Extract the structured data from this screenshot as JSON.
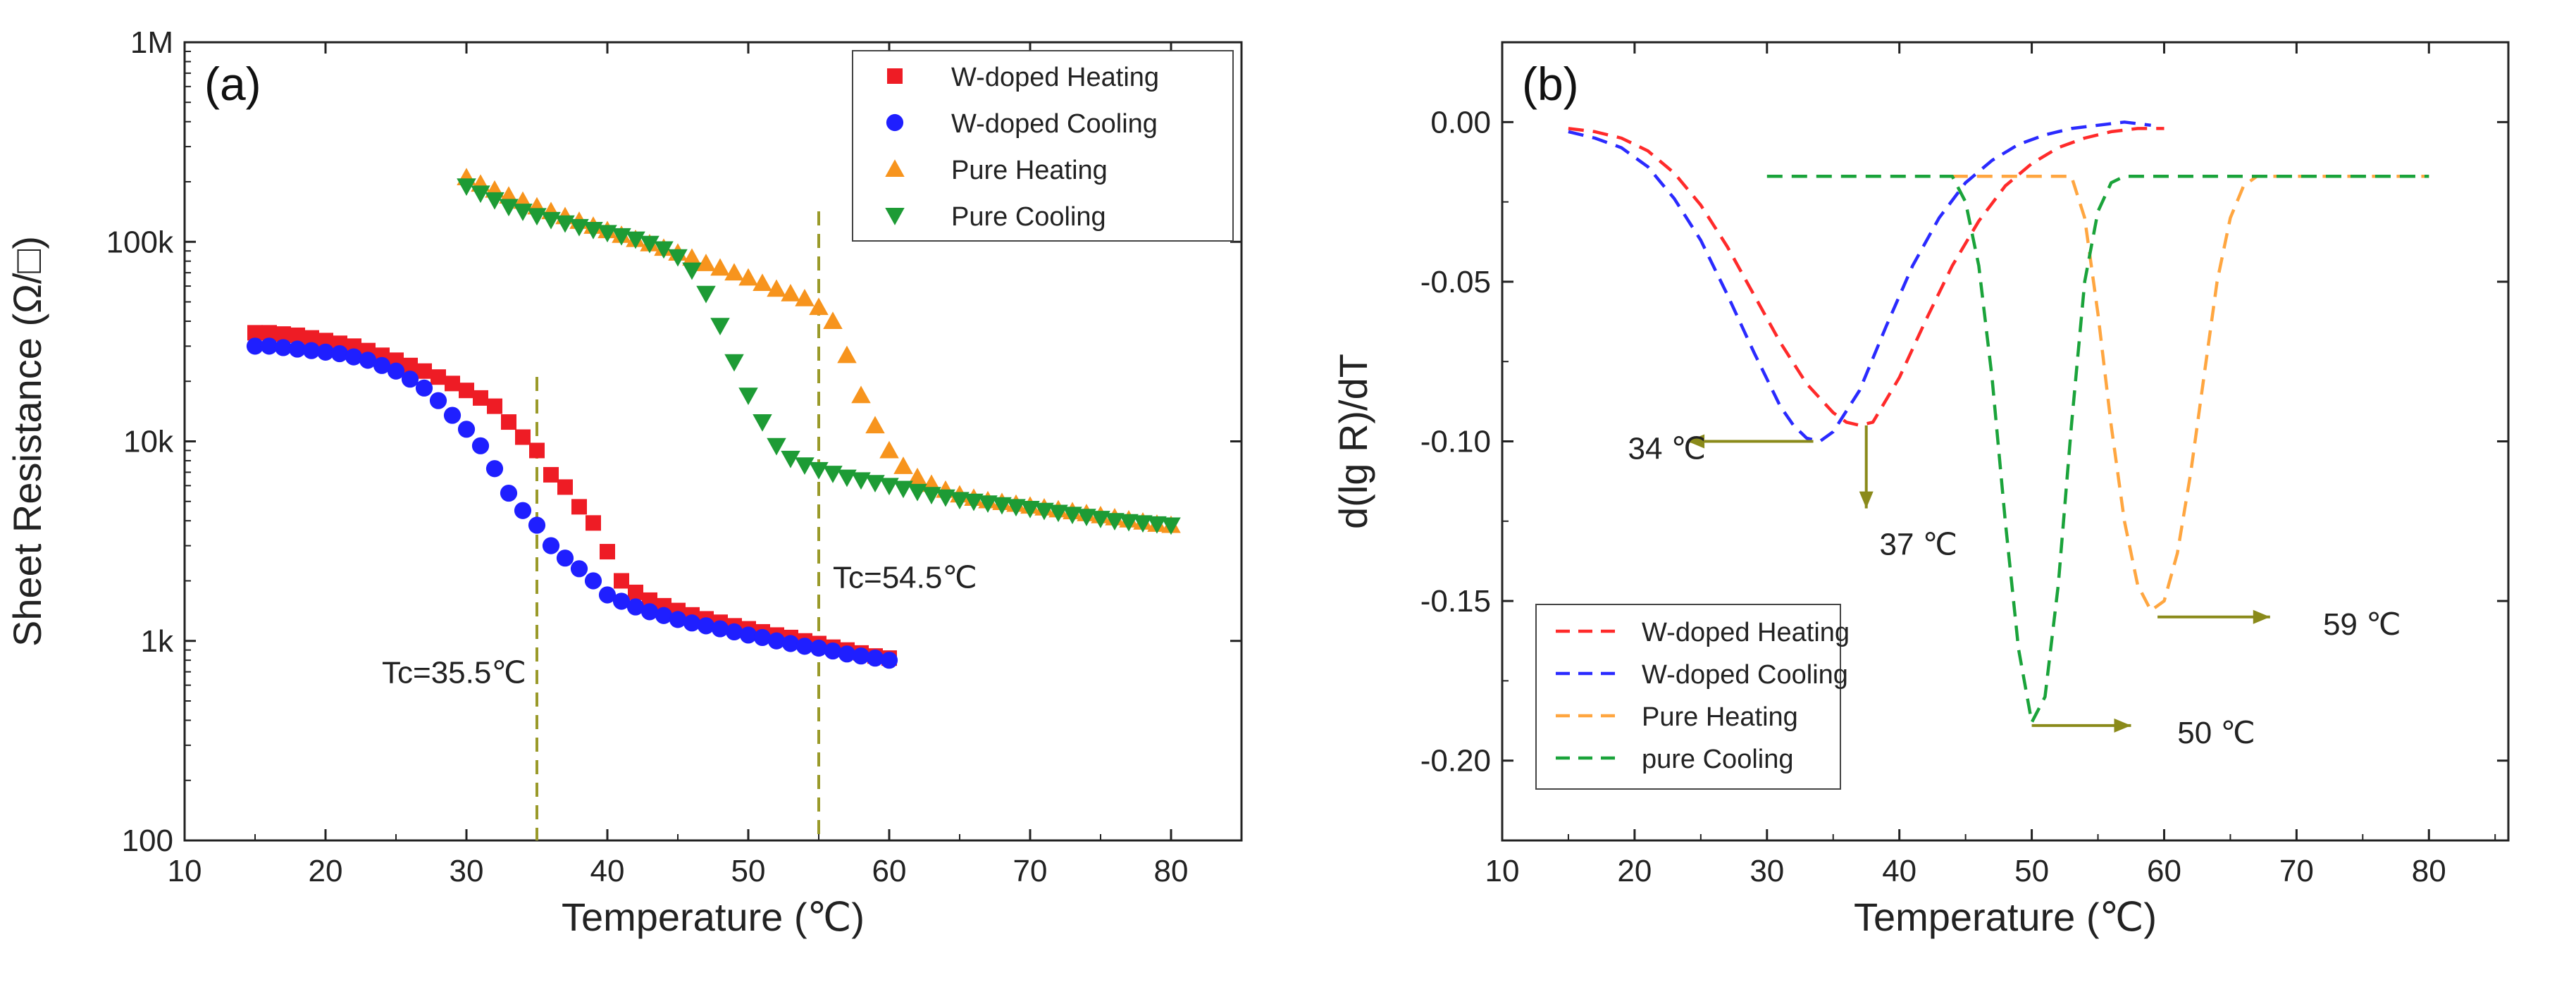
{
  "chart_data": [
    {
      "type": "scatter",
      "panel_label": "(a)",
      "xlabel": "Temperature (℃)",
      "ylabel": "Sheet Resistance (Ω/□)",
      "xlim": [
        10,
        85
      ],
      "ylim": [
        100,
        1000000
      ],
      "yscale": "log",
      "xticks": [
        10,
        20,
        30,
        40,
        50,
        60,
        70,
        80
      ],
      "yticks": [
        {
          "value": 100,
          "label": "100"
        },
        {
          "value": 1000,
          "label": "1k"
        },
        {
          "value": 10000,
          "label": "10k"
        },
        {
          "value": 100000,
          "label": "100k"
        },
        {
          "value": 1000000,
          "label": "1M"
        }
      ],
      "legend_position": "top-right",
      "series": [
        {
          "name": "W-doped Heating",
          "marker": "square",
          "color": "#ee1c25",
          "x": [
            15,
            16,
            17,
            18,
            19,
            20,
            21,
            22,
            23,
            24,
            25,
            26,
            27,
            28,
            29,
            30,
            31,
            32,
            33,
            34,
            35,
            36,
            37,
            38,
            39,
            40,
            41,
            42,
            43,
            44,
            45,
            46,
            47,
            48,
            49,
            50,
            51,
            52,
            53,
            54,
            55,
            56,
            57,
            58,
            59,
            60
          ],
          "y": [
            35000,
            35000,
            34500,
            34000,
            33000,
            32000,
            31000,
            30000,
            28500,
            27000,
            25500,
            24000,
            22500,
            21000,
            19500,
            18000,
            16500,
            15000,
            12500,
            10500,
            9000,
            6800,
            5900,
            4700,
            3900,
            2800,
            2000,
            1750,
            1600,
            1500,
            1420,
            1350,
            1290,
            1240,
            1190,
            1150,
            1110,
            1070,
            1040,
            1000,
            970,
            930,
            900,
            870,
            840,
            820
          ]
        },
        {
          "name": "W-doped Cooling",
          "marker": "circle",
          "color": "#1f1fff",
          "x": [
            15,
            16,
            17,
            18,
            19,
            20,
            21,
            22,
            23,
            24,
            25,
            26,
            27,
            28,
            29,
            30,
            31,
            32,
            33,
            34,
            35,
            36,
            37,
            38,
            39,
            40,
            41,
            42,
            43,
            44,
            45,
            46,
            47,
            48,
            49,
            50,
            51,
            52,
            53,
            54,
            55,
            56,
            57,
            58,
            59,
            60
          ],
          "y": [
            30000,
            30000,
            29500,
            29000,
            28500,
            28000,
            27500,
            26500,
            25500,
            24000,
            22500,
            20500,
            18500,
            16000,
            13500,
            11500,
            9500,
            7300,
            5500,
            4500,
            3800,
            3000,
            2600,
            2300,
            2000,
            1700,
            1580,
            1480,
            1400,
            1340,
            1280,
            1230,
            1190,
            1150,
            1110,
            1070,
            1040,
            1000,
            970,
            940,
            920,
            890,
            860,
            840,
            820,
            800
          ]
        },
        {
          "name": "Pure Heating",
          "marker": "triangle-up",
          "color": "#f7941d",
          "x": [
            30,
            31,
            32,
            33,
            34,
            35,
            36,
            37,
            38,
            39,
            40,
            41,
            42,
            43,
            44,
            45,
            46,
            47,
            48,
            49,
            50,
            51,
            52,
            53,
            54,
            55,
            56,
            57,
            58,
            59,
            60,
            61,
            62,
            63,
            64,
            65,
            66,
            67,
            68,
            69,
            70,
            71,
            72,
            73,
            74,
            75,
            76,
            77,
            78,
            79,
            80
          ],
          "y": [
            210000,
            195000,
            182000,
            170000,
            160000,
            150000,
            142000,
            134000,
            127000,
            120000,
            114000,
            108000,
            103000,
            98000,
            93000,
            88000,
            83000,
            78000,
            74000,
            70000,
            66000,
            62000,
            58000,
            55000,
            52000,
            47000,
            40000,
            27000,
            17000,
            12000,
            9000,
            7500,
            6600,
            6100,
            5700,
            5400,
            5200,
            5050,
            4950,
            4850,
            4750,
            4650,
            4550,
            4450,
            4350,
            4250,
            4150,
            4050,
            3950,
            3850,
            3800
          ]
        },
        {
          "name": "Pure Cooling",
          "marker": "triangle-down",
          "color": "#1d9b35",
          "x": [
            30,
            31,
            32,
            33,
            34,
            35,
            36,
            37,
            38,
            39,
            40,
            41,
            42,
            43,
            44,
            45,
            46,
            47,
            48,
            49,
            50,
            51,
            52,
            53,
            54,
            55,
            56,
            57,
            58,
            59,
            60,
            61,
            62,
            63,
            64,
            65,
            66,
            67,
            68,
            69,
            70,
            71,
            72,
            73,
            74,
            75,
            76,
            77,
            78,
            79,
            80
          ],
          "y": [
            190000,
            175000,
            162000,
            150000,
            142000,
            135000,
            129000,
            124000,
            119000,
            115000,
            111000,
            107000,
            103000,
            98000,
            92000,
            84000,
            72000,
            55000,
            38000,
            25000,
            17000,
            12500,
            9500,
            8200,
            7600,
            7200,
            6900,
            6600,
            6400,
            6200,
            6000,
            5800,
            5600,
            5400,
            5250,
            5100,
            5000,
            4900,
            4800,
            4700,
            4600,
            4500,
            4400,
            4300,
            4200,
            4100,
            4000,
            3950,
            3900,
            3850,
            3800
          ]
        }
      ],
      "vlines": [
        {
          "x": 35,
          "label": "Tc=35.5℃",
          "label_x": 24,
          "label_y": 700
        },
        {
          "x": 55,
          "label": "Tc=54.5℃",
          "label_x": 56,
          "label_y": 2100
        }
      ]
    },
    {
      "type": "line",
      "panel_label": "(b)",
      "xlabel": "Temperature (℃)",
      "ylabel": "d(lg R)/dT",
      "xlim": [
        10,
        86
      ],
      "ylim": [
        -0.225,
        0.025
      ],
      "xticks": [
        10,
        20,
        30,
        40,
        50,
        60,
        70,
        80
      ],
      "yticks": [
        {
          "value": 0.0,
          "label": "0.00"
        },
        {
          "value": -0.05,
          "label": "-0.05"
        },
        {
          "value": -0.1,
          "label": "-0.10"
        },
        {
          "value": -0.15,
          "label": "-0.15"
        },
        {
          "value": -0.2,
          "label": "-0.20"
        }
      ],
      "legend_position": "bottom-left",
      "series": [
        {
          "name": "W-doped Heating",
          "color": "#ff2a2a",
          "dash": "dashed",
          "x": [
            15,
            17,
            19,
            21,
            23,
            25,
            27,
            29,
            31,
            33,
            35,
            36,
            37,
            38,
            40,
            42,
            44,
            46,
            48,
            50,
            52,
            54,
            56,
            58,
            60
          ],
          "y": [
            -0.002,
            -0.003,
            -0.005,
            -0.009,
            -0.016,
            -0.026,
            -0.039,
            -0.054,
            -0.069,
            -0.082,
            -0.091,
            -0.094,
            -0.095,
            -0.094,
            -0.08,
            -0.062,
            -0.045,
            -0.031,
            -0.02,
            -0.013,
            -0.008,
            -0.005,
            -0.003,
            -0.002,
            -0.002
          ]
        },
        {
          "name": "W-doped Cooling",
          "color": "#2a2aff",
          "dash": "dashed",
          "x": [
            15,
            17,
            19,
            21,
            23,
            25,
            27,
            29,
            31,
            32,
            33,
            34,
            35,
            37,
            39,
            41,
            43,
            45,
            47,
            49,
            51,
            53,
            55,
            57,
            59
          ],
          "y": [
            -0.003,
            -0.005,
            -0.008,
            -0.014,
            -0.024,
            -0.037,
            -0.054,
            -0.072,
            -0.089,
            -0.095,
            -0.099,
            -0.1,
            -0.097,
            -0.084,
            -0.064,
            -0.045,
            -0.03,
            -0.019,
            -0.012,
            -0.007,
            -0.004,
            -0.002,
            -0.001,
            0.0,
            -0.001
          ]
        },
        {
          "name": "Pure Heating",
          "color": "#ffa640",
          "dash": "dashed",
          "x": [
            44,
            53,
            54,
            55,
            56,
            57,
            58,
            59,
            60,
            61,
            62,
            63,
            64,
            65,
            66,
            67,
            68,
            80
          ],
          "y": [
            -0.017,
            -0.017,
            -0.03,
            -0.06,
            -0.095,
            -0.125,
            -0.145,
            -0.153,
            -0.15,
            -0.135,
            -0.11,
            -0.08,
            -0.05,
            -0.03,
            -0.02,
            -0.017,
            -0.017,
            -0.017
          ]
        },
        {
          "name": "pure Cooling",
          "color": "#1aa33a",
          "dash": "dashed",
          "x": [
            30,
            44,
            45,
            46,
            47,
            48,
            49,
            50,
            51,
            52,
            53,
            54,
            55,
            56,
            57,
            80
          ],
          "y": [
            -0.017,
            -0.017,
            -0.025,
            -0.045,
            -0.08,
            -0.125,
            -0.165,
            -0.188,
            -0.18,
            -0.145,
            -0.095,
            -0.05,
            -0.028,
            -0.019,
            -0.017,
            -0.017
          ]
        }
      ],
      "annotations": [
        {
          "text": "34 ℃",
          "arrow_from": [
            33.5,
            -0.1
          ],
          "arrow_to": [
            24,
            -0.1
          ],
          "text_x": 19.5,
          "text_y": -0.102
        },
        {
          "text": "37 ℃",
          "arrow_from": [
            37.5,
            -0.095
          ],
          "arrow_to": [
            37.5,
            -0.121
          ],
          "text_x": 38.5,
          "text_y": -0.132
        },
        {
          "text": "59 ℃",
          "arrow_from": [
            59.5,
            -0.155
          ],
          "arrow_to": [
            68,
            -0.155
          ],
          "text_x": 72,
          "text_y": -0.157
        },
        {
          "text": "50 ℃",
          "arrow_from": [
            50,
            -0.189
          ],
          "arrow_to": [
            57.5,
            -0.189
          ],
          "text_x": 61,
          "text_y": -0.191
        }
      ],
      "arrow_color": "#8a8a1a"
    }
  ]
}
